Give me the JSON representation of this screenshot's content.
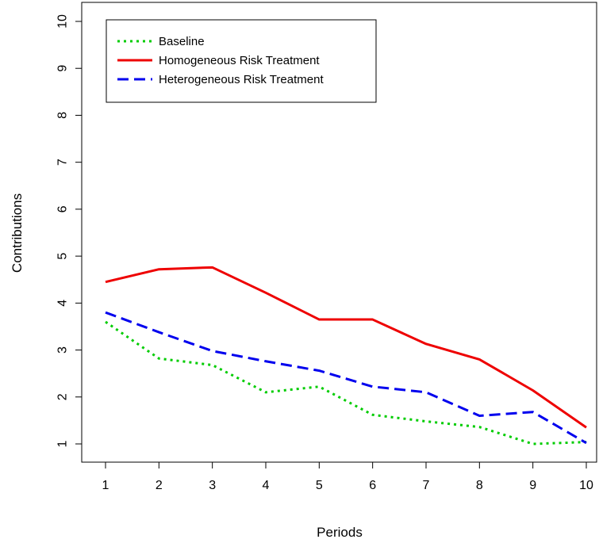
{
  "chart_data": {
    "type": "line",
    "title": "",
    "xlabel": "Periods",
    "ylabel": "Contributions",
    "x": [
      1,
      2,
      3,
      4,
      5,
      6,
      7,
      8,
      9,
      10
    ],
    "xlim": [
      1,
      10
    ],
    "ylim": [
      1,
      10
    ],
    "x_ticks": [
      "1",
      "2",
      "3",
      "4",
      "5",
      "6",
      "7",
      "8",
      "9",
      "10"
    ],
    "y_ticks": [
      "1",
      "2",
      "3",
      "4",
      "5",
      "6",
      "7",
      "8",
      "9",
      "10"
    ],
    "grid": false,
    "legend_position": "top-left",
    "series": [
      {
        "name": "Baseline",
        "color": "#00cc00",
        "style": "dotted",
        "values": [
          3.6,
          2.82,
          2.68,
          2.1,
          2.22,
          1.62,
          1.48,
          1.36,
          1.0,
          1.04
        ]
      },
      {
        "name": "Homogeneous Risk Treatment",
        "color": "#ee0000",
        "style": "solid",
        "values": [
          4.45,
          4.72,
          4.76,
          4.22,
          3.65,
          3.65,
          3.13,
          2.8,
          2.14,
          1.35
        ]
      },
      {
        "name": "Heterogeneous Risk Treatment",
        "color": "#0000ee",
        "style": "dashed",
        "values": [
          3.8,
          3.38,
          2.98,
          2.76,
          2.56,
          2.22,
          2.1,
          1.6,
          1.68,
          1.02
        ]
      }
    ]
  }
}
